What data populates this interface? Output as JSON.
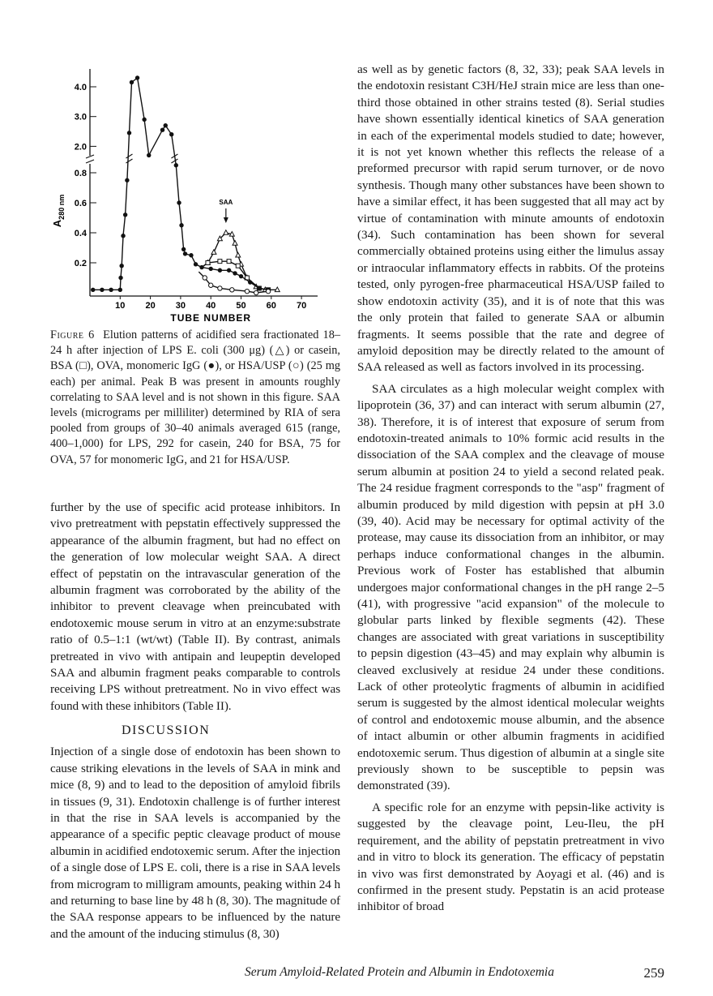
{
  "chart_data": {
    "type": "line",
    "xlabel": "TUBE NUMBER",
    "ylabel": "A",
    "ylabel_sub": "280 nm",
    "x_ticks": [
      10,
      20,
      30,
      40,
      50,
      60,
      70
    ],
    "y_ticks_lower": [
      "0.2",
      "0.4",
      "0.6",
      "0.8"
    ],
    "y_ticks_upper": [
      "2.0",
      "3.0",
      "4.0"
    ],
    "y_axis_break": true,
    "xlim": [
      0,
      73
    ],
    "ylim_lower": [
      0,
      0.9
    ],
    "ylim_upper": [
      1.5,
      4.4
    ],
    "annotation": "SAA",
    "annotation_x": 45,
    "grid": false,
    "series": [
      {
        "marker": "filled-circle",
        "shared": true,
        "points": [
          [
            1,
            0.02
          ],
          [
            4,
            0.02
          ],
          [
            7,
            0.02
          ],
          [
            10,
            0.02
          ],
          [
            10.2,
            0.1
          ],
          [
            10.5,
            0.18
          ],
          [
            11,
            0.38
          ],
          [
            11.7,
            0.52
          ],
          [
            12.3,
            0.75
          ],
          [
            13,
            2.45
          ],
          [
            13.8,
            4.15
          ],
          [
            15.7,
            4.3
          ],
          [
            18,
            2.9
          ],
          [
            19.5,
            1.7
          ],
          [
            24,
            2.55
          ],
          [
            25,
            2.7
          ],
          [
            27,
            2.4
          ],
          [
            28.5,
            0.85
          ],
          [
            29.5,
            0.6
          ],
          [
            30.3,
            0.45
          ],
          [
            31,
            0.29
          ],
          [
            31.5,
            0.26
          ],
          [
            33.5,
            0.25
          ],
          [
            35,
            0.19
          ],
          [
            37,
            0.17
          ]
        ]
      },
      {
        "marker": "open-triangle",
        "points": [
          [
            37,
            0.17
          ],
          [
            39,
            0.2
          ],
          [
            41,
            0.27
          ],
          [
            43,
            0.36
          ],
          [
            45,
            0.4
          ],
          [
            47,
            0.39
          ],
          [
            48,
            0.33
          ],
          [
            49,
            0.25
          ],
          [
            50,
            0.19
          ],
          [
            52,
            0.1
          ],
          [
            55,
            0.04
          ],
          [
            58,
            0.02
          ],
          [
            62,
            0.02
          ]
        ]
      },
      {
        "marker": "open-square",
        "points": [
          [
            37,
            0.17
          ],
          [
            39,
            0.2
          ],
          [
            43,
            0.21
          ],
          [
            46,
            0.21
          ],
          [
            49,
            0.18
          ],
          [
            52,
            0.1
          ],
          [
            56,
            0.03
          ],
          [
            59,
            0.02
          ]
        ]
      },
      {
        "marker": "filled-circle",
        "points": [
          [
            37,
            0.17
          ],
          [
            40,
            0.16
          ],
          [
            43,
            0.15
          ],
          [
            46,
            0.15
          ],
          [
            48,
            0.13
          ],
          [
            50,
            0.11
          ],
          [
            53,
            0.07
          ],
          [
            56,
            0.03
          ],
          [
            59,
            0.02
          ]
        ]
      },
      {
        "marker": "open-circle",
        "points": [
          [
            36,
            0.14
          ],
          [
            38,
            0.1
          ],
          [
            40,
            0.05
          ],
          [
            43,
            0.03
          ],
          [
            47,
            0.02
          ],
          [
            52,
            0.01
          ],
          [
            55,
            0.0
          ],
          [
            59,
            0.01
          ]
        ]
      }
    ]
  },
  "caption": {
    "label": "Figure 6",
    "text": "Elution patterns of acidified sera fractionated 18–24 h after injection of LPS E. coli (300 μg) (△) or casein, BSA (□), OVA, monomeric IgG (●), or HSA/USP (○) (25 mg each) per animal. Peak B was present in amounts roughly correlating to SAA level and is not shown in this figure. SAA levels (micrograms per milliliter) determined by RIA of sera pooled from groups of 30–40 animals averaged 615 (range, 400–1,000) for LPS, 292 for casein, 240 for BSA, 75 for OVA, 57 for monomeric IgG, and 21 for HSA/USP."
  },
  "left_column": {
    "p1": "further by the use of specific acid protease inhibitors. In vivo pretreatment with pepstatin effectively suppressed the appearance of the albumin fragment, but had no effect on the generation of low molecular weight SAA. A direct effect of pepstatin on the intravascular generation of the albumin fragment was corroborated by the ability of the inhibitor to prevent cleavage when preincubated with endotoxemic mouse serum in vitro at an enzyme:substrate ratio of 0.5–1:1 (wt/wt) (Table II). By contrast, animals pretreated in vivo with antipain and leupeptin developed SAA and albumin fragment peaks comparable to controls receiving LPS without pretreatment. No in vivo effect was found with these inhibitors (Table II).",
    "heading": "DISCUSSION",
    "p2": "Injection of a single dose of endotoxin has been shown to cause striking elevations in the levels of SAA in mink and mice (8, 9) and to lead to the deposition of amyloid fibrils in tissues (9, 31). Endotoxin challenge is of further interest in that the rise in SAA levels is accompanied by the appearance of a specific peptic cleavage product of mouse albumin in acidified endotoxemic serum. After the injection of a single dose of LPS E. coli, there is a rise in SAA levels from microgram to milligram amounts, peaking within 24 h and returning to base line by 48 h (8, 30). The magnitude of the SAA response appears to be influenced by the nature and the amount of the inducing stimulus (8, 30)"
  },
  "right_column": {
    "p1": "as well as by genetic factors (8, 32, 33); peak SAA levels in the endotoxin resistant C3H/HeJ strain mice are less than one-third those obtained in other strains tested (8). Serial studies have shown essentially identical kinetics of SAA generation in each of the experimental models studied to date; however, it is not yet known whether this reflects the release of a preformed precursor with rapid serum turnover, or de novo synthesis. Though many other substances have been shown to have a similar effect, it has been suggested that all may act by virtue of contamination with minute amounts of endotoxin (34). Such contamination has been shown for several commercially obtained proteins using either the limulus assay or intraocular inflammatory effects in rabbits. Of the proteins tested, only pyrogen-free pharmaceutical HSA/USP failed to show endotoxin activity (35), and it is of note that this was the only protein that failed to generate SAA or albumin fragments. It seems possible that the rate and degree of amyloid deposition may be directly related to the amount of SAA released as well as factors involved in its processing.",
    "p2": "SAA circulates as a high molecular weight complex with lipoprotein (36, 37) and can interact with serum albumin (27, 38). Therefore, it is of interest that exposure of serum from endotoxin-treated animals to 10% formic acid results in the dissociation of the SAA complex and the cleavage of mouse serum albumin at position 24 to yield a second related peak. The 24 residue fragment corresponds to the \"asp\" fragment of albumin produced by mild digestion with pepsin at pH 3.0 (39, 40). Acid may be necessary for optimal activity of the protease, may cause its dissociation from an inhibitor, or may perhaps induce conformational changes in the albumin. Previous work of Foster has established that albumin undergoes major conformational changes in the pH range 2–5 (41), with progressive \"acid expansion\" of the molecule to globular parts linked by flexible segments (42). These changes are associated with great variations in susceptibility to pepsin digestion (43–45) and may explain why albumin is cleaved exclusively at residue 24 under these conditions. Lack of other proteolytic fragments of albumin in acidified serum is suggested by the almost identical molecular weights of control and endotoxemic mouse albumin, and the absence of intact albumin or other albumin fragments in acidified endotoxemic serum. Thus digestion of albumin at a single site previously shown to be susceptible to pepsin was demonstrated (39).",
    "p3": "A specific role for an enzyme with pepsin-like activity is suggested by the cleavage point, Leu-Ileu, the pH requirement, and the ability of pepstatin pretreatment in vivo and in vitro to block its generation. The efficacy of pepstatin in vivo was first demonstrated by Aoyagi et al. (46) and is confirmed in the present study. Pepstatin is an acid protease inhibitor of broad"
  },
  "footer": {
    "running_title": "Serum Amyloid-Related Protein and Albumin in Endotoxemia",
    "page_number": "259"
  }
}
